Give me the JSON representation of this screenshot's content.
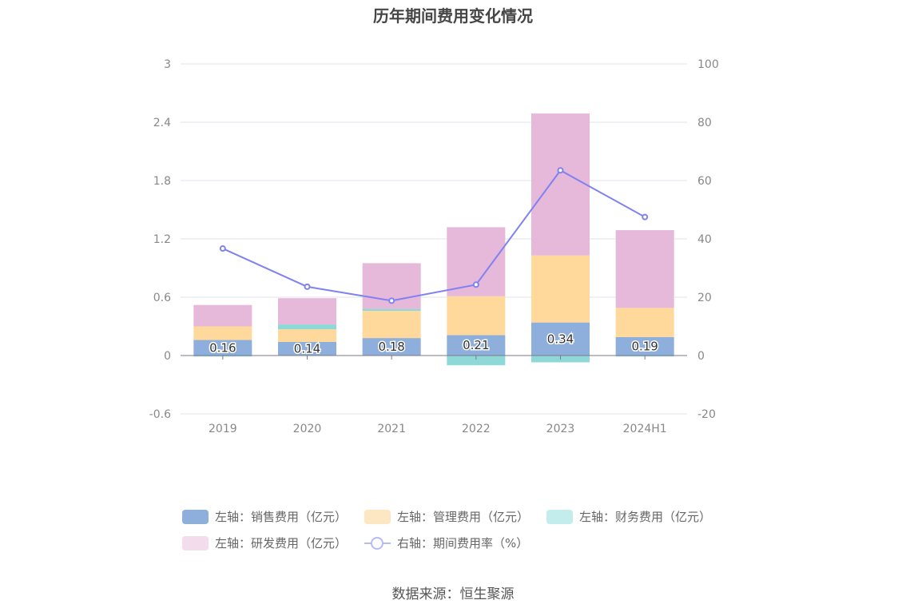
{
  "chart_data": {
    "type": "bar",
    "title": "历年期间费用变化情况",
    "categories": [
      "2019",
      "2020",
      "2021",
      "2022",
      "2023",
      "2024H1"
    ],
    "left_axis": {
      "ylim": [
        -0.6,
        3
      ],
      "ticks": [
        "3",
        "2.4",
        "1.8",
        "1.2",
        "0.6",
        "0",
        "-0.6"
      ],
      "tick_values": [
        3,
        2.4,
        1.8,
        1.2,
        0.6,
        0,
        -0.6
      ]
    },
    "right_axis": {
      "ylim": [
        -20,
        100
      ],
      "ticks": [
        "100",
        "80",
        "60",
        "40",
        "20",
        "0",
        "-20"
      ],
      "tick_values": [
        100,
        80,
        60,
        40,
        20,
        0,
        -20
      ]
    },
    "series": [
      {
        "name": "左轴：销售费用（亿元）",
        "kind": "bar",
        "color": "#8eaedc",
        "values": [
          0.16,
          0.14,
          0.18,
          0.21,
          0.34,
          0.19
        ],
        "labels": [
          "0.16",
          "0.14",
          "0.18",
          "0.21",
          "0.34",
          "0.19"
        ]
      },
      {
        "name": "左轴：管理费用（亿元）",
        "kind": "bar",
        "color": "#ffd99c",
        "values": [
          0.14,
          0.13,
          0.28,
          0.4,
          0.69,
          0.3
        ]
      },
      {
        "name": "左轴：财务费用（亿元）",
        "kind": "bar",
        "color": "#8fd8d8",
        "values": [
          -0.01,
          0.05,
          0.02,
          -0.1,
          -0.07,
          -0.01
        ]
      },
      {
        "name": "左轴：研发费用（亿元）",
        "kind": "bar",
        "color": "#e6b8da",
        "values": [
          0.22,
          0.27,
          0.47,
          0.71,
          1.46,
          0.8
        ]
      },
      {
        "name": "右轴：期间费用率（%）",
        "kind": "line",
        "axis": "right",
        "color": "#7f82f0",
        "values": [
          36.7,
          23.6,
          18.8,
          24.3,
          63.5,
          47.5
        ]
      }
    ]
  },
  "source": "数据来源：恒生聚源"
}
